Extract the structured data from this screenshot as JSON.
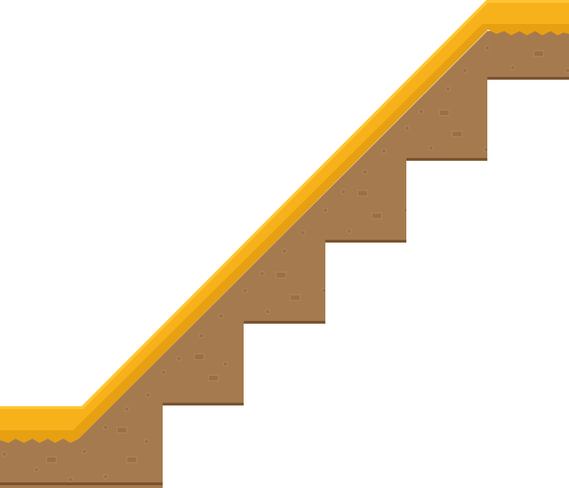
{
  "scene": {
    "kind": "platformer-terrain-tile",
    "element": "staircase-slope",
    "ascending_direction": "right",
    "step_count": 5,
    "palette": {
      "background": "#ffffff",
      "dirt": "#A57A4E",
      "dirt_shadow": "#7A5430",
      "dirt_speck": "#9A6F45",
      "speck_highlight": "#B48B62",
      "grass_top": "#F7B11A",
      "grass_shade": "#E8A013",
      "grass_highlight": "#FFC533"
    }
  }
}
